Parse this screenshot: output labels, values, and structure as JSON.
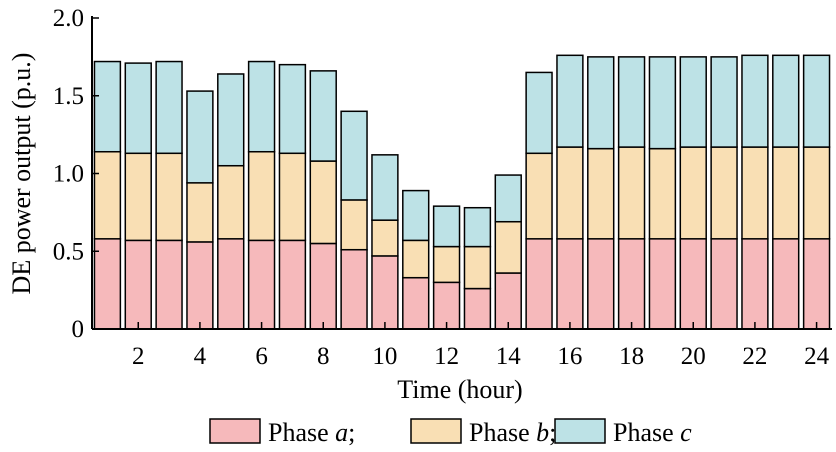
{
  "chart_data": {
    "type": "bar",
    "stacked": true,
    "xlabel": "Time (hour)",
    "ylabel": "DE power output (p.u.)",
    "ylim": [
      0,
      2.0
    ],
    "yticks": [
      "0",
      "0.5",
      "1.0",
      "1.5",
      "2.0"
    ],
    "xtick_labels": [
      "2",
      "4",
      "6",
      "8",
      "10",
      "12",
      "14",
      "16",
      "18",
      "20",
      "22",
      "24"
    ],
    "xticks": [
      2,
      4,
      6,
      8,
      10,
      12,
      14,
      16,
      18,
      20,
      22,
      24
    ],
    "categories": [
      1,
      2,
      3,
      4,
      5,
      6,
      7,
      8,
      9,
      10,
      11,
      12,
      13,
      14,
      15,
      16,
      17,
      18,
      19,
      20,
      21,
      22,
      23,
      24
    ],
    "grid": false,
    "legend_position": "bottom",
    "series": [
      {
        "name": "Phase a",
        "legend_label": "Phase a;",
        "color": "#F6B9BB",
        "values": [
          0.58,
          0.57,
          0.57,
          0.56,
          0.58,
          0.57,
          0.57,
          0.55,
          0.51,
          0.47,
          0.33,
          0.3,
          0.26,
          0.36,
          0.58,
          0.58,
          0.58,
          0.58,
          0.58,
          0.58,
          0.58,
          0.58,
          0.58,
          0.58
        ]
      },
      {
        "name": "Phase b",
        "legend_label": "Phase b;",
        "color": "#F9DFB4",
        "values": [
          0.56,
          0.56,
          0.56,
          0.38,
          0.47,
          0.57,
          0.56,
          0.53,
          0.32,
          0.23,
          0.24,
          0.23,
          0.27,
          0.33,
          0.55,
          0.59,
          0.58,
          0.59,
          0.58,
          0.59,
          0.59,
          0.59,
          0.59,
          0.59
        ]
      },
      {
        "name": "Phase c",
        "legend_label": "Phase c",
        "color": "#BDE2E6",
        "values": [
          0.58,
          0.58,
          0.59,
          0.59,
          0.59,
          0.58,
          0.57,
          0.58,
          0.57,
          0.42,
          0.32,
          0.26,
          0.25,
          0.3,
          0.52,
          0.59,
          0.59,
          0.58,
          0.59,
          0.58,
          0.58,
          0.59,
          0.59,
          0.59
        ]
      }
    ]
  }
}
